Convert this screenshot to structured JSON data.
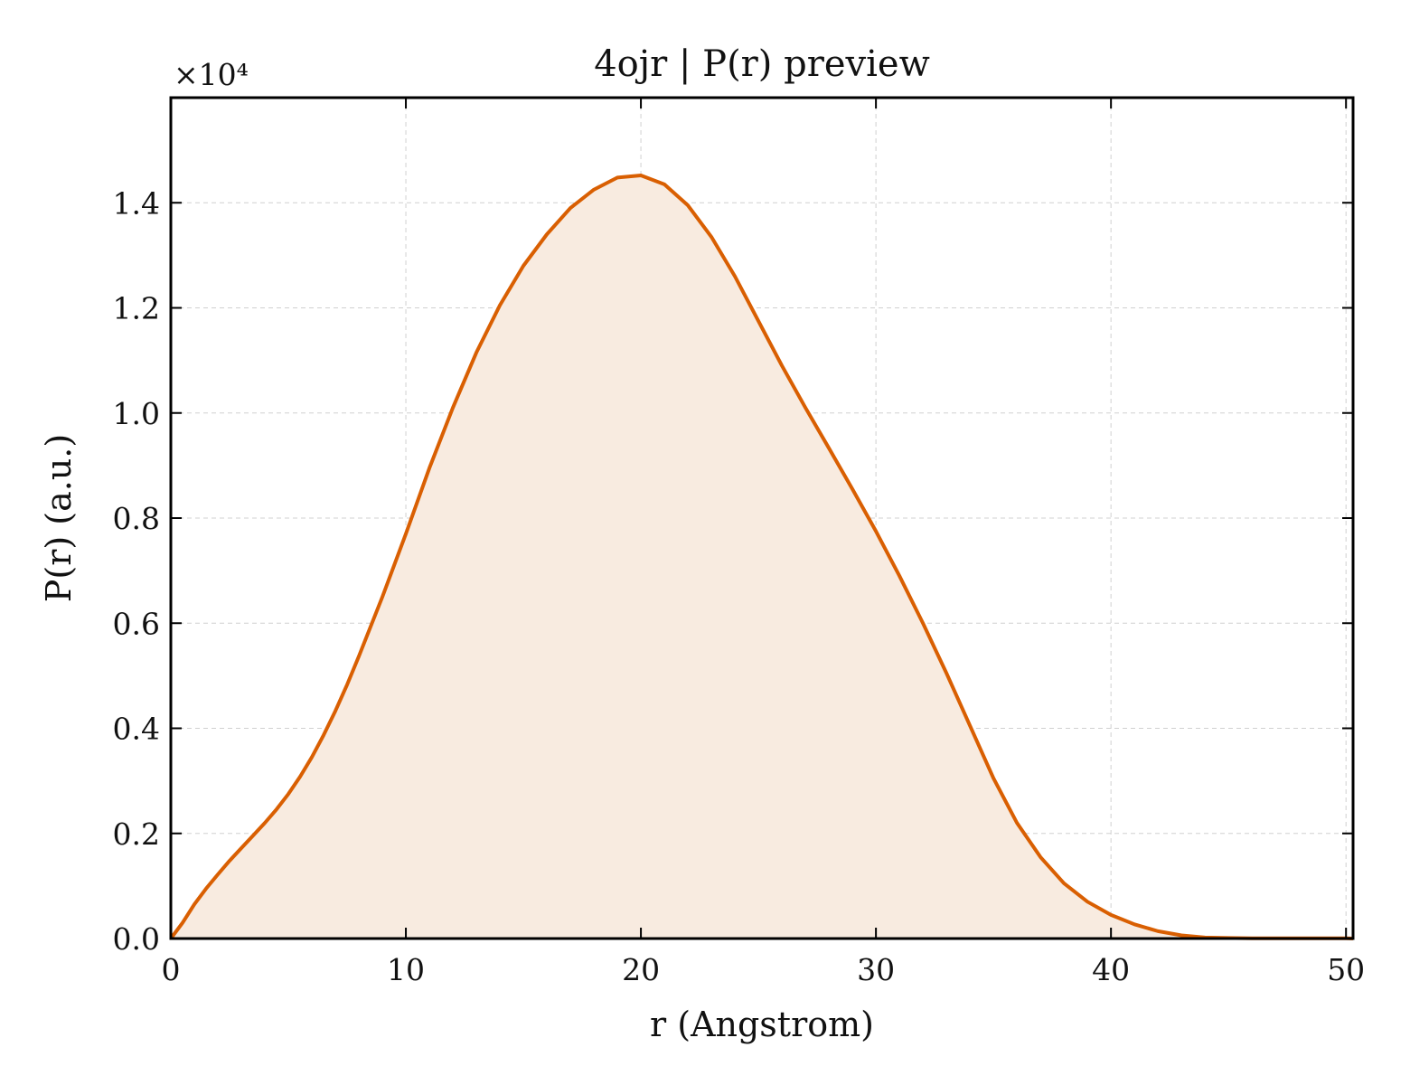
{
  "chart_data": {
    "type": "area",
    "title": "4ojr | P(r) preview",
    "xlabel": "r (Angstrom)",
    "ylabel": "P(r) (a.u.)",
    "y_offset_label": "×10⁴",
    "xlim": [
      0,
      50.3
    ],
    "ylim": [
      0,
      1.6
    ],
    "xticks": [
      "0",
      "10",
      "20",
      "30",
      "40",
      "50"
    ],
    "yticks": [
      "0.0",
      "0.2",
      "0.4",
      "0.6",
      "0.8",
      "1.0",
      "1.2",
      "1.4"
    ],
    "grid": true,
    "line_color": "#d95f02",
    "fill_color": "#f8ebe0",
    "series": [
      {
        "x": [
          0,
          0.5,
          1,
          1.5,
          2,
          2.5,
          3,
          3.5,
          4,
          4.5,
          5,
          5.5,
          6,
          6.5,
          7,
          7.5,
          8,
          9,
          10,
          11,
          12,
          13,
          14,
          15,
          16,
          17,
          18,
          19,
          20,
          21,
          22,
          23,
          24,
          25,
          26,
          27,
          28,
          29,
          30,
          31,
          32,
          33,
          34,
          35,
          36,
          37,
          38,
          39,
          40,
          41,
          42,
          43,
          44,
          45,
          46,
          47,
          48,
          49,
          50,
          50.3
        ],
        "y": [
          0.0,
          0.03,
          0.065,
          0.095,
          0.122,
          0.148,
          0.172,
          0.196,
          0.22,
          0.246,
          0.275,
          0.308,
          0.345,
          0.387,
          0.433,
          0.483,
          0.537,
          0.65,
          0.77,
          0.895,
          1.01,
          1.115,
          1.205,
          1.28,
          1.34,
          1.39,
          1.425,
          1.448,
          1.452,
          1.435,
          1.395,
          1.335,
          1.26,
          1.175,
          1.09,
          1.01,
          0.933,
          0.855,
          0.775,
          0.69,
          0.6,
          0.505,
          0.405,
          0.305,
          0.22,
          0.155,
          0.105,
          0.07,
          0.045,
          0.027,
          0.014,
          0.006,
          0.002,
          0.001,
          0.0005,
          0.0005,
          0.0004,
          0.0004,
          0.0004,
          0.0
        ]
      }
    ]
  }
}
